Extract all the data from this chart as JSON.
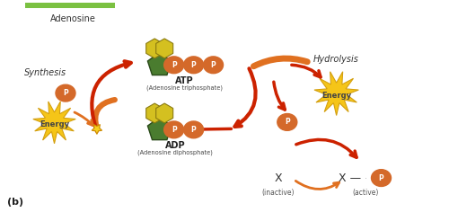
{
  "bg_color": "#ffffff",
  "title_text": "(b)",
  "adenosine_label": "Adenosine",
  "atp_label": "ATP",
  "atp_sublabel": "(Adenosine triphosphate)",
  "adp_label": "ADP",
  "adp_sublabel": "(Adenosine diphosphate)",
  "synthesis_label": "Synthesis",
  "hydrolysis_label": "Hydrolysis",
  "energy_label": "Energy",
  "inactive_label": "X",
  "inactive_sublabel": "(inactive)",
  "active_label": "X —",
  "active_sublabel": "(active)",
  "p_label": "P",
  "phosphate_color": "#d4692a",
  "phosphate_text_color": "#ffffff",
  "energy_star_color_left": "#f5c518",
  "energy_star_color_right": "#f5c518",
  "energy_star_border": "#d4a010",
  "ribose_color": "#4a7c2f",
  "ribose_border": "#2a4a1a",
  "base_color": "#d4c020",
  "base_border": "#8a7a10",
  "arrow_red": "#cc2200",
  "arrow_orange": "#e07020",
  "top_bar_color": "#7bc142",
  "curve_arrow_lw": 3.5
}
